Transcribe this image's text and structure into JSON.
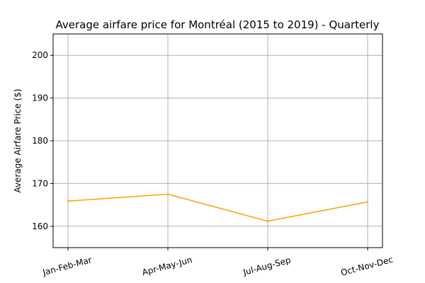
{
  "chart_data": {
    "type": "line",
    "title": "Average airfare price for Montréal (2015 to 2019) - Quarterly",
    "xlabel": "",
    "ylabel": "Average Airfare Price ($)",
    "categories": [
      "Jan-Feb-Mar",
      "Apr-May-Jun",
      "Jul-Aug-Sep",
      "Oct-Nov-Dec"
    ],
    "series": [
      {
        "values": [
          165.9,
          167.5,
          161.2,
          165.7
        ],
        "color": "#ffa500"
      }
    ],
    "ylim": [
      155,
      205
    ],
    "yticks": [
      160,
      170,
      180,
      190,
      200
    ],
    "grid": true,
    "xtick_rotation": 15
  }
}
